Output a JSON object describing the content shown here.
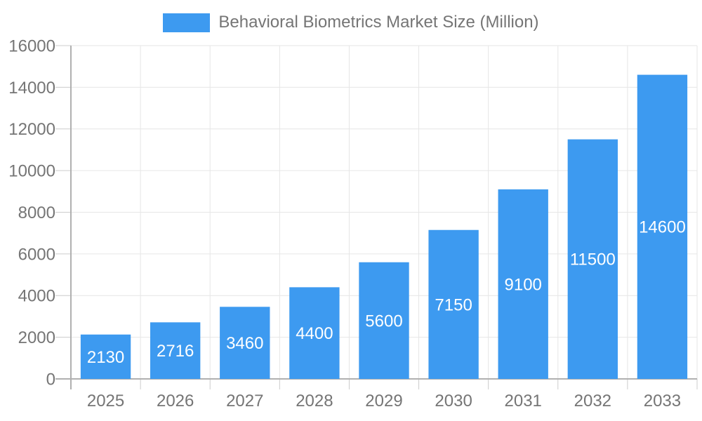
{
  "legend": {
    "label": "Behavioral Biometrics Market Size (Million)"
  },
  "chart_data": {
    "type": "bar",
    "title": "Behavioral Biometrics Market Size (Million)",
    "series": [
      {
        "name": "Behavioral Biometrics Market Size (Million)",
        "values": [
          2130,
          2716,
          3460,
          4400,
          5600,
          7150,
          9100,
          11500,
          14600
        ]
      }
    ],
    "categories": [
      "2025",
      "2026",
      "2027",
      "2028",
      "2029",
      "2030",
      "2031",
      "2032",
      "2033"
    ],
    "xlabel": "",
    "ylabel": "",
    "ylim": [
      0,
      16000
    ],
    "yticks": [
      0,
      2000,
      4000,
      6000,
      8000,
      10000,
      12000,
      14000,
      16000
    ],
    "grid": true,
    "legend_position": "top-center",
    "value_labels": "inside-center",
    "colors": {
      "bar": "#3D9AF0",
      "value_label": "#FFFFFF",
      "axis_line": "#B0B0B0",
      "gridline": "#E6E6E6",
      "tick": "#CCCCCC",
      "text": "#757575",
      "background": "#FFFFFF"
    }
  }
}
